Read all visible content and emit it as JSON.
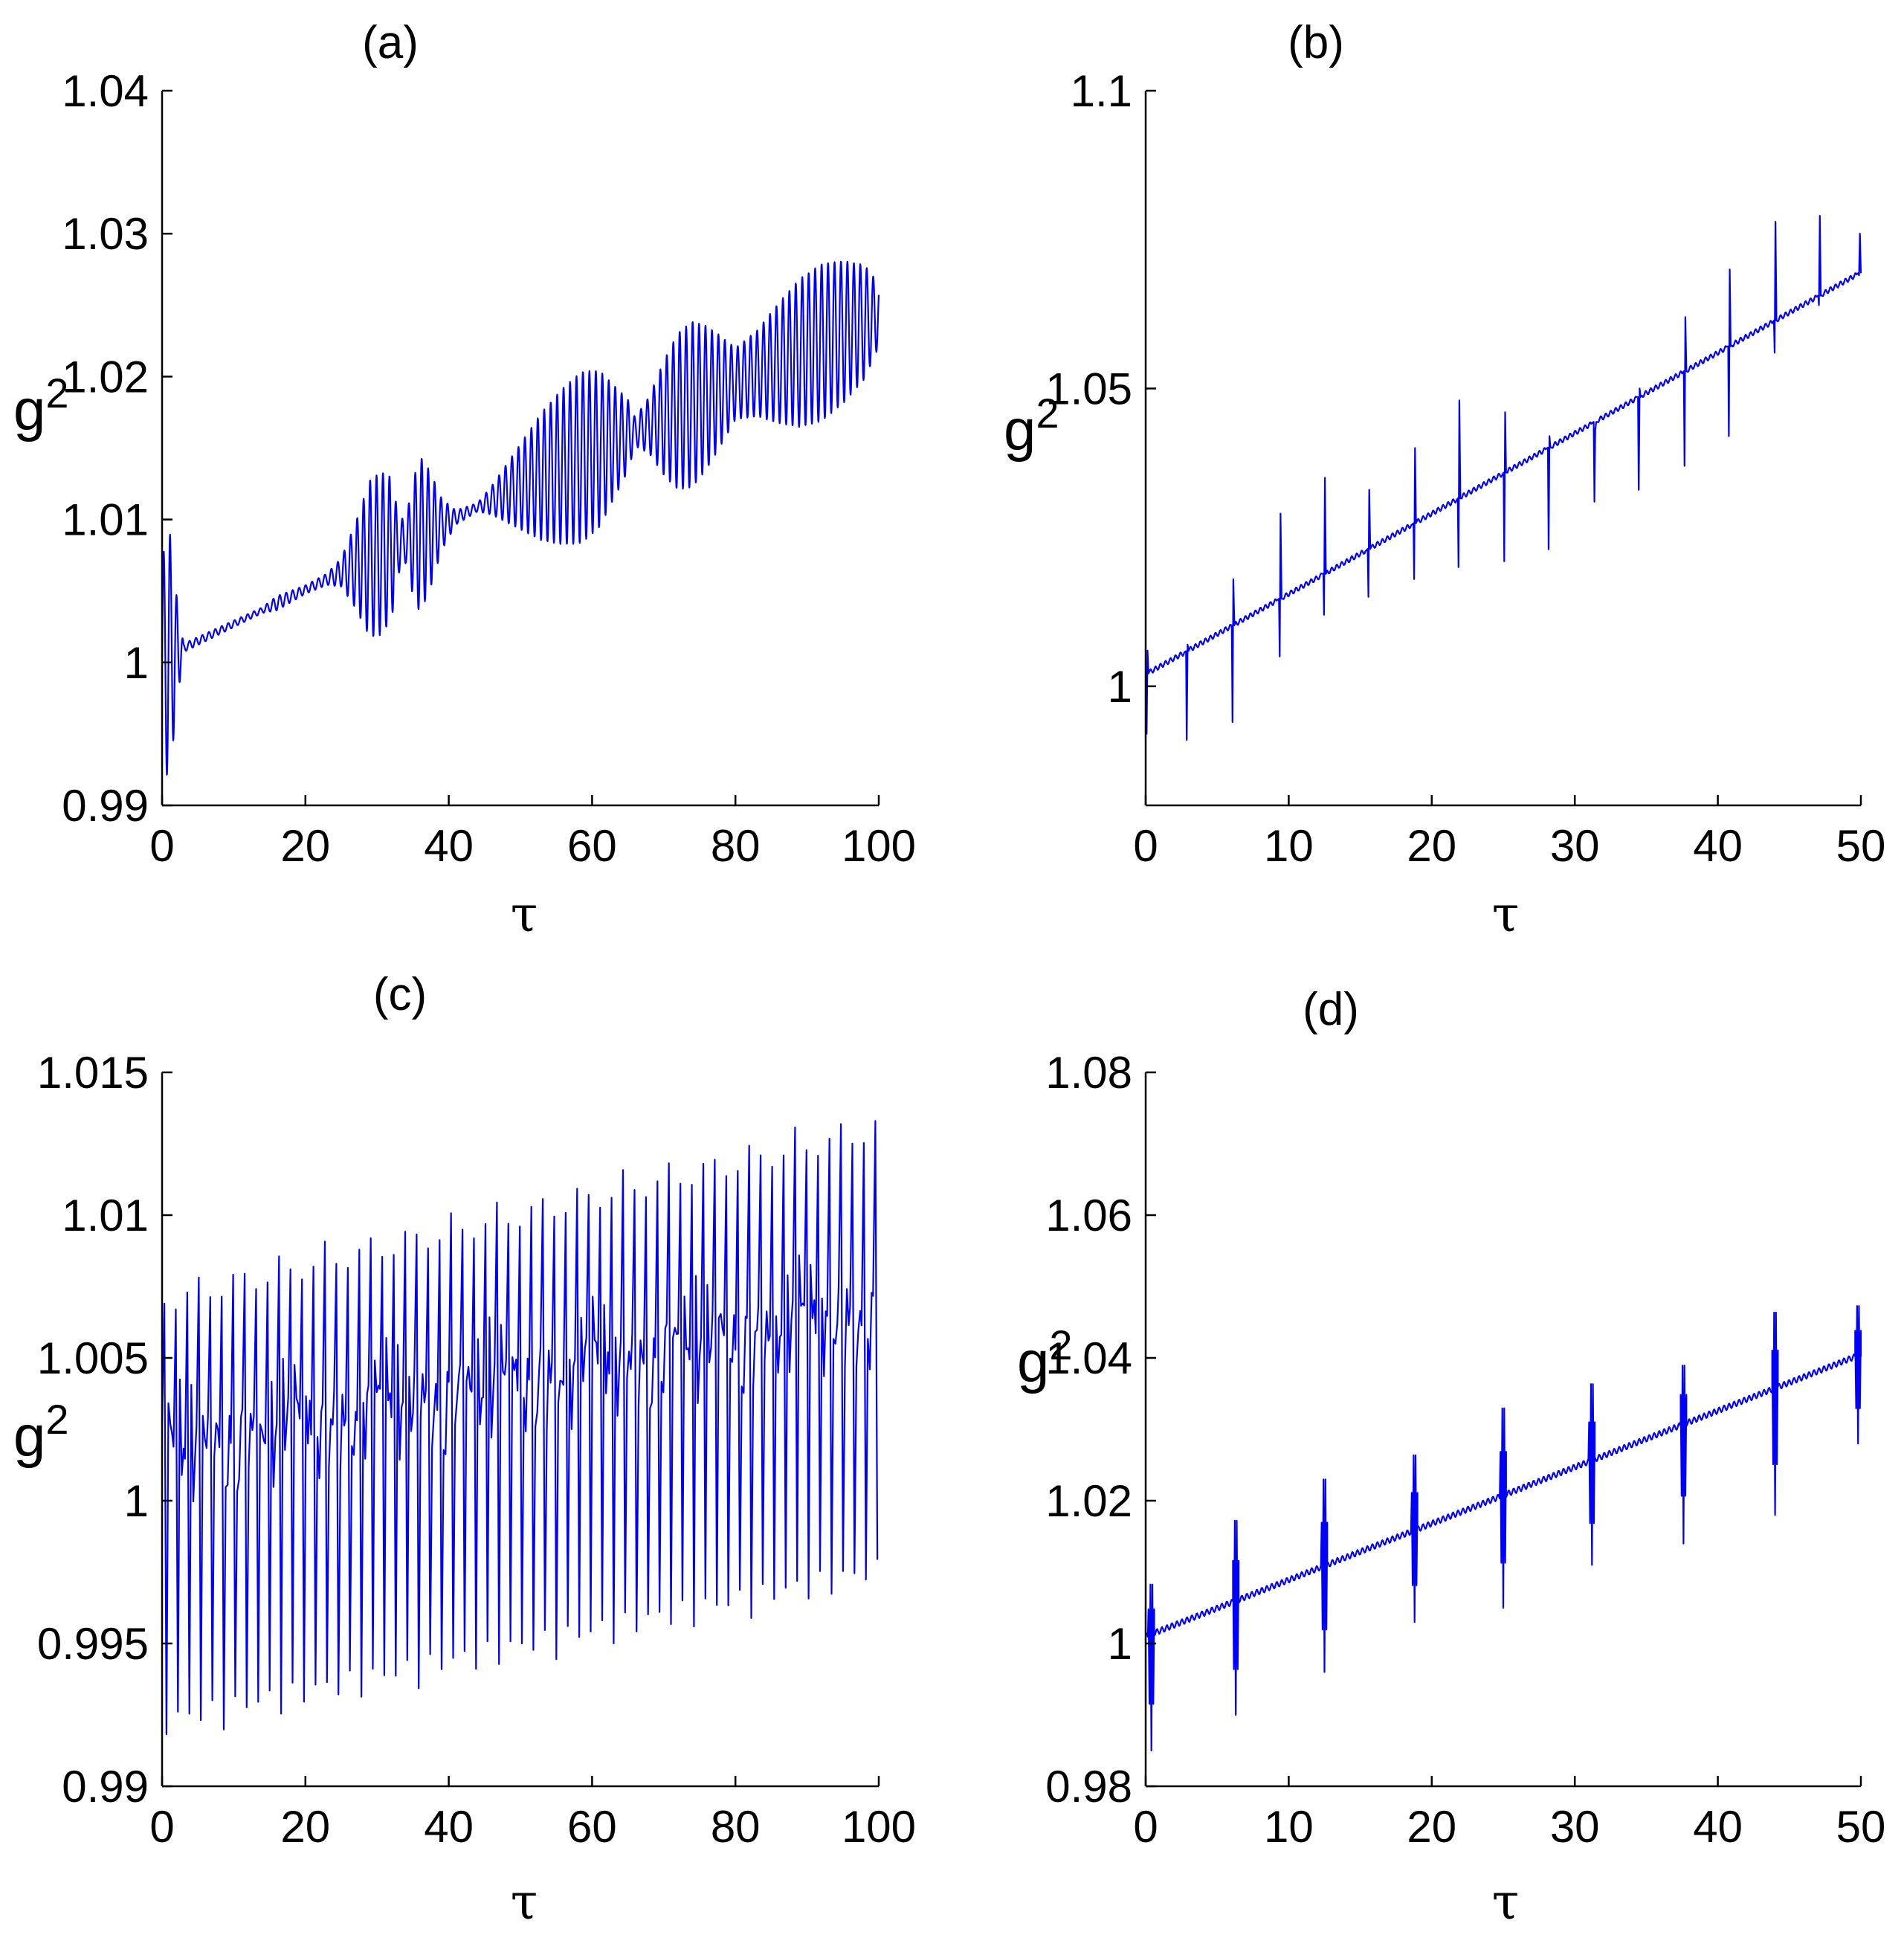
{
  "chart_data": [
    {
      "panel": "(a)",
      "type": "line",
      "title": "(a)",
      "xlabel": "τ",
      "ylabel_base": "g",
      "ylabel_sup": "2",
      "xlim": [
        0,
        100
      ],
      "ylim": [
        0.99,
        1.04
      ],
      "xticks": [
        0,
        20,
        40,
        60,
        80,
        100
      ],
      "xtick_labels": [
        "0",
        "20",
        "40",
        "60",
        "80",
        "100"
      ],
      "yticks": [
        0.99,
        1.0,
        1.01,
        1.02,
        1.03,
        1.04
      ],
      "ytick_labels": [
        "0.99",
        "1",
        "1.01",
        "1.02",
        "1.03",
        "1.04"
      ],
      "color": "#0000ff",
      "series": [
        {
          "name": "g2",
          "x_range": [
            0,
            100
          ],
          "samples": 2400,
          "baseline": {
            "x": [
              0,
              100
            ],
            "y": [
              1.0003,
              1.0243
            ]
          },
          "oscillation_period": 0.9,
          "envelope": {
            "x": [
              0,
              0.5,
              1,
              2,
              2.8,
              3,
              14,
              16,
              20,
              23,
              25,
              27,
              29,
              30.5,
              32,
              33,
              34,
              35,
              36,
              37.5,
              39,
              41,
              44,
              46,
              48,
              50,
              53,
              56,
              58.5,
              61,
              63,
              65,
              66,
              68,
              70,
              72,
              74,
              76,
              78,
              80,
              83,
              86,
              89,
              92,
              95,
              98,
              100
            ],
            "amp": [
              0.007,
              0.008,
              0.009,
              0.004,
              0.001,
              0.0003,
              0.0002,
              0.0005,
              0.0003,
              0.0004,
              0.001,
              0.003,
              0.0055,
              0.0057,
              0.005,
              0.002,
              0.0015,
              0.004,
              0.0055,
              0.004,
              0.0018,
              0.0005,
              0.0003,
              0.001,
              0.002,
              0.003,
              0.0045,
              0.0055,
              0.006,
              0.0055,
              0.004,
              0.0025,
              0.001,
              0.002,
              0.004,
              0.0055,
              0.0058,
              0.005,
              0.0038,
              0.0025,
              0.003,
              0.0042,
              0.0052,
              0.0055,
              0.005,
              0.004,
              0.0022
            ]
          }
        }
      ]
    },
    {
      "panel": "(b)",
      "type": "line",
      "title": "(b)",
      "xlabel": "τ",
      "ylabel_base": "g",
      "ylabel_sup": "2",
      "xlim": [
        0,
        50
      ],
      "ylim": [
        0.98,
        1.1
      ],
      "xticks": [
        0,
        10,
        20,
        30,
        40,
        50
      ],
      "xtick_labels": [
        "0",
        "10",
        "20",
        "30",
        "40",
        "50"
      ],
      "yticks": [
        1.0,
        1.05,
        1.1
      ],
      "ytick_labels": [
        "1",
        "1.05",
        "1.1"
      ],
      "color": "#0000ff",
      "series": [
        {
          "name": "g2",
          "x_range": [
            0,
            50
          ],
          "baseline": {
            "x": [
              0,
              50
            ],
            "y": [
              1.002,
              1.0695
            ]
          },
          "spikes": [
            {
              "x": 0.1,
              "up": 1.006,
              "down": 0.992
            },
            {
              "x": 2.9,
              "up": 1.007,
              "down": 0.991
            },
            {
              "x": 6.1,
              "up": 1.018,
              "down": 0.994
            },
            {
              "x": 9.4,
              "up": 1.029,
              "down": 1.005
            },
            {
              "x": 12.5,
              "up": 1.035,
              "down": 1.012
            },
            {
              "x": 15.6,
              "up": 1.033,
              "down": 1.015
            },
            {
              "x": 18.8,
              "up": 1.04,
              "down": 1.018
            },
            {
              "x": 21.9,
              "up": 1.048,
              "down": 1.02
            },
            {
              "x": 25.1,
              "up": 1.046,
              "down": 1.021
            },
            {
              "x": 28.2,
              "up": 1.042,
              "down": 1.023
            },
            {
              "x": 31.4,
              "up": 1.043,
              "down": 1.031
            },
            {
              "x": 34.5,
              "up": 1.05,
              "down": 1.033
            },
            {
              "x": 37.7,
              "up": 1.062,
              "down": 1.037
            },
            {
              "x": 40.8,
              "up": 1.07,
              "down": 1.042
            },
            {
              "x": 44.0,
              "up": 1.078,
              "down": 1.056
            },
            {
              "x": 47.1,
              "up": 1.079,
              "down": 1.064
            },
            {
              "x": 49.9,
              "up": 1.076,
              "down": 1.069
            }
          ]
        }
      ]
    },
    {
      "panel": "(c)",
      "type": "line",
      "title": "(c)",
      "xlabel": "τ",
      "ylabel_base": "g",
      "ylabel_sup": "2",
      "xlim": [
        0,
        100
      ],
      "ylim": [
        0.99,
        1.015
      ],
      "xticks": [
        0,
        20,
        40,
        60,
        80,
        100
      ],
      "xtick_labels": [
        "0",
        "20",
        "40",
        "60",
        "80",
        "100"
      ],
      "yticks": [
        0.99,
        0.995,
        1.0,
        1.005,
        1.01,
        1.015
      ],
      "ytick_labels": [
        "0.99",
        "0.995",
        "1",
        "1.005",
        "1.01",
        "1.015"
      ],
      "color": "#0000ff",
      "series": [
        {
          "name": "g2",
          "x_range": [
            0,
            100
          ],
          "spike_period": 1.6,
          "peak_trend": {
            "x": [
              0,
              100
            ],
            "y": [
              1.0078,
              1.0138
            ]
          },
          "trough_trend": {
            "x": [
              0,
              100
            ],
            "y": [
              0.9915,
              0.9968
            ]
          },
          "mid_trend": {
            "x": [
              0,
              100
            ],
            "y": [
              1.002,
              1.007
            ]
          }
        }
      ]
    },
    {
      "panel": "(d)",
      "type": "line",
      "title": "(d)",
      "xlabel": "τ",
      "ylabel_base": "g",
      "ylabel_sup": "2",
      "xlim": [
        0,
        50
      ],
      "ylim": [
        0.98,
        1.08
      ],
      "xticks": [
        0,
        10,
        20,
        30,
        40,
        50
      ],
      "xtick_labels": [
        "0",
        "10",
        "20",
        "30",
        "40",
        "50"
      ],
      "yticks": [
        0.98,
        1.0,
        1.02,
        1.04,
        1.06,
        1.08
      ],
      "ytick_labels": [
        "0.98",
        "1",
        "1.02",
        "1.04",
        "1.06",
        "1.08"
      ],
      "color": "#0000ff",
      "series": [
        {
          "name": "g2",
          "x_range": [
            0,
            50
          ],
          "baseline": {
            "x": [
              0,
              50
            ],
            "y": [
              1.001,
              1.0405
            ]
          },
          "bursts": [
            {
              "x": 0.4,
              "up": 1.01,
              "down": 0.985
            },
            {
              "x": 6.3,
              "up": 1.02,
              "down": 0.99
            },
            {
              "x": 12.5,
              "up": 1.026,
              "down": 0.996
            },
            {
              "x": 18.8,
              "up": 1.029,
              "down": 1.003
            },
            {
              "x": 25.0,
              "up": 1.036,
              "down": 1.005
            },
            {
              "x": 31.2,
              "up": 1.039,
              "down": 1.011
            },
            {
              "x": 37.6,
              "up": 1.041,
              "down": 1.014
            },
            {
              "x": 44.0,
              "up": 1.049,
              "down": 1.018
            },
            {
              "x": 49.8,
              "up": 1.049,
              "down": 1.028
            }
          ]
        }
      ]
    }
  ]
}
